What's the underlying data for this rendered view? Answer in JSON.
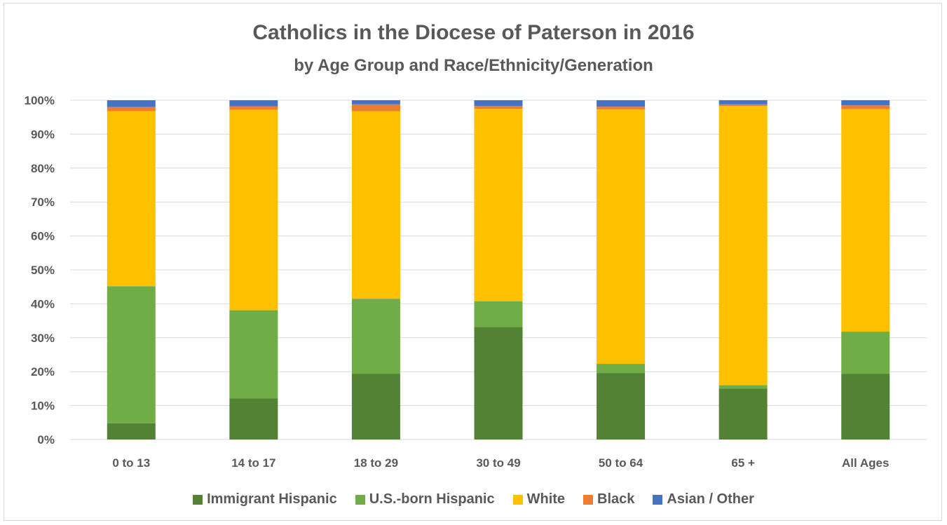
{
  "chart_data": {
    "type": "bar",
    "stacked": true,
    "title": "Catholics in the Diocese of Paterson in 2016",
    "subtitle": "by Age Group and Race/Ethnicity/Generation",
    "categories": [
      "0 to 13",
      "14 to 17",
      "18 to 29",
      "30 to 49",
      "50 to 64",
      "65 +",
      "All Ages"
    ],
    "y_ticks": [
      "0%",
      "10%",
      "20%",
      "30%",
      "40%",
      "50%",
      "60%",
      "70%",
      "80%",
      "90%",
      "100%"
    ],
    "ylim": [
      0,
      100
    ],
    "grid": true,
    "legend_position": "bottom",
    "series": [
      {
        "name": "Immigrant Hispanic",
        "color": "#548235",
        "values": [
          4.8,
          12.1,
          19.4,
          33.2,
          19.6,
          15.0,
          19.4
        ]
      },
      {
        "name": "U.S.-born Hispanic",
        "color": "#70ad47",
        "values": [
          40.4,
          26.0,
          22.1,
          7.5,
          2.7,
          1.0,
          12.4
        ]
      },
      {
        "name": "White",
        "color": "#ffc000",
        "values": [
          51.6,
          59.1,
          55.3,
          56.8,
          75.0,
          82.3,
          65.6
        ]
      },
      {
        "name": "Black",
        "color": "#ed7d31",
        "values": [
          1.2,
          1.0,
          2.0,
          0.8,
          0.8,
          0.5,
          1.1
        ]
      },
      {
        "name": "Asian / Other",
        "color": "#4472c4",
        "values": [
          2.0,
          1.8,
          1.2,
          1.7,
          1.9,
          1.2,
          1.5
        ]
      }
    ]
  }
}
